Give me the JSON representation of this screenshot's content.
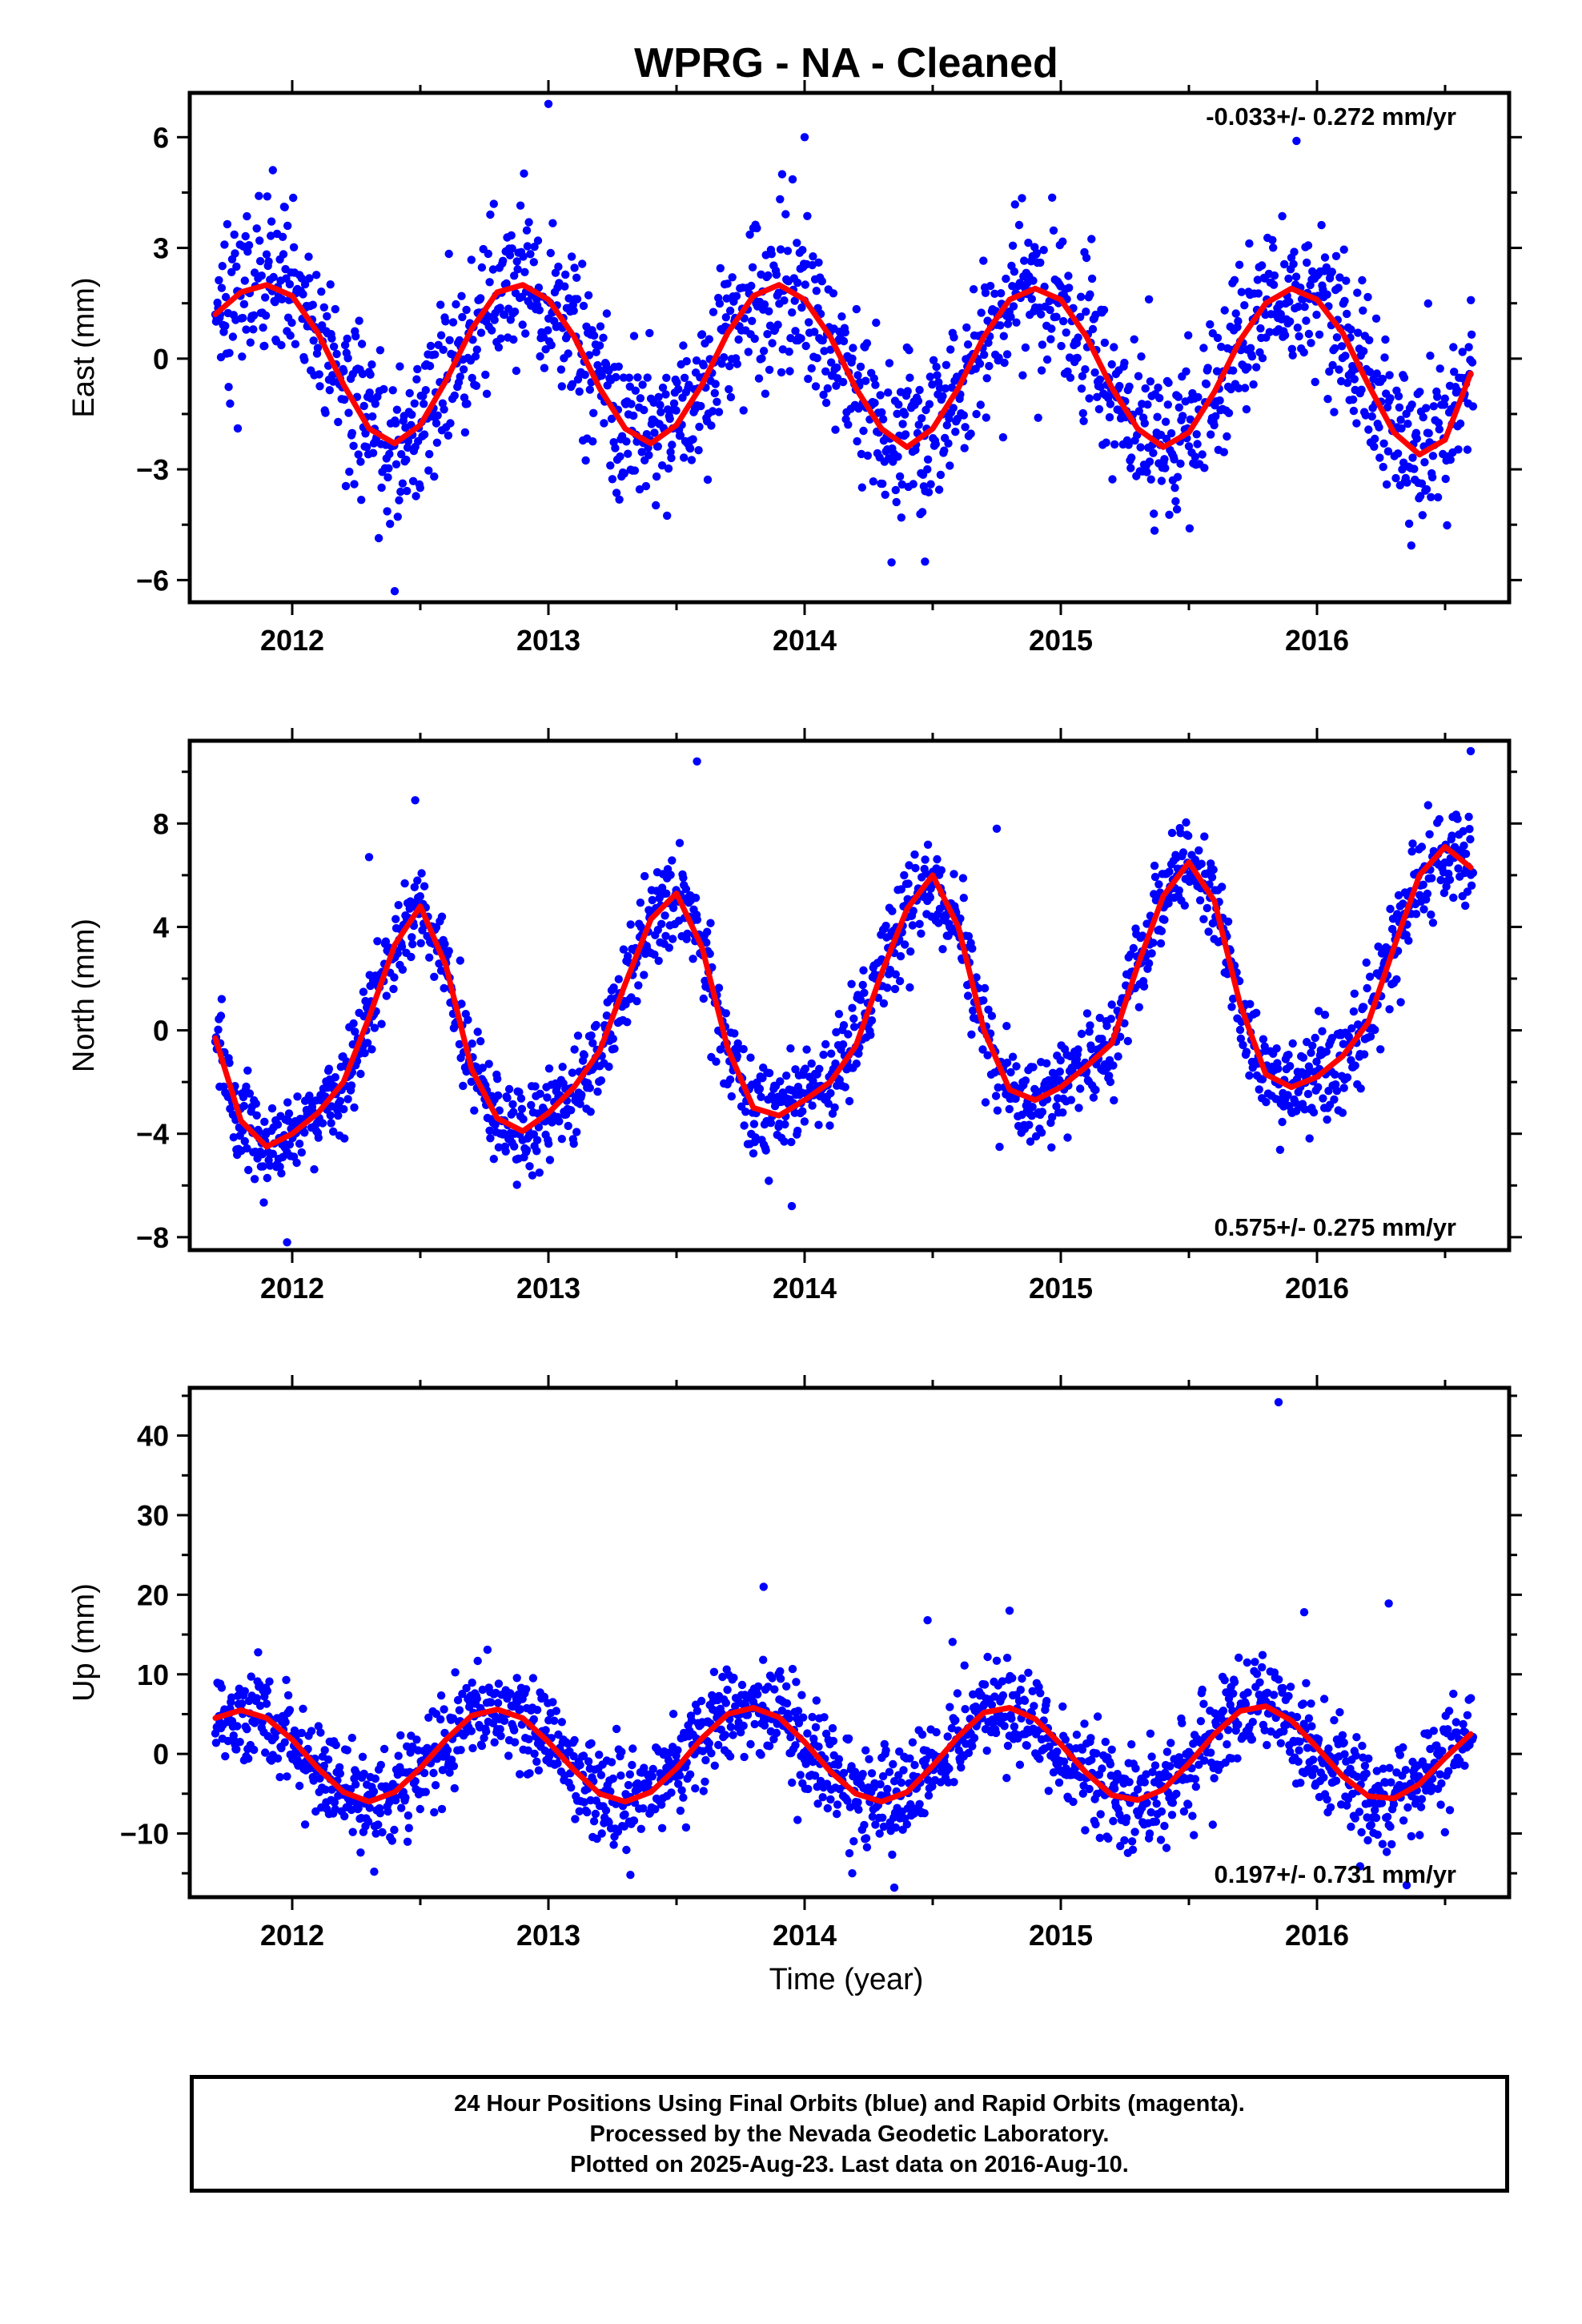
{
  "title": "WPRG  - NA - Cleaned",
  "xlabel": "Time (year)",
  "colors": {
    "points": "#0000ff",
    "fit": "#ff0000",
    "axes": "#000000"
  },
  "footer": {
    "line1": "24 Hour Positions Using Final Orbits (blue) and Rapid Orbits (magenta).",
    "line2": "Processed by the Nevada Geodetic Laboratory.",
    "line3": "Plotted on 2025-Aug-23. Last data on 2016-Aug-10."
  },
  "chart_data": [
    {
      "type": "scatter",
      "ylabel": "East (mm)",
      "xlim": [
        2011.6,
        2016.75
      ],
      "ylim": [
        -6.6,
        7.2
      ],
      "xticks": [
        2012,
        2013,
        2014,
        2015,
        2016
      ],
      "yticks": [
        -6,
        -3,
        0,
        3,
        6
      ],
      "ytick_labels": [
        "−6",
        "−3",
        "0",
        "3",
        "6"
      ],
      "rate": "-0.033+/- 0.272 mm/yr",
      "rate_position": "top-right",
      "fit": {
        "x": [
          2011.7,
          2011.8,
          2011.9,
          2012.0,
          2012.1,
          2012.2,
          2012.3,
          2012.4,
          2012.5,
          2012.6,
          2012.7,
          2012.8,
          2012.9,
          2013.0,
          2013.1,
          2013.2,
          2013.3,
          2013.4,
          2013.5,
          2013.6,
          2013.7,
          2013.8,
          2013.9,
          2014.0,
          2014.1,
          2014.2,
          2014.3,
          2014.4,
          2014.5,
          2014.6,
          2014.7,
          2014.8,
          2014.9,
          2015.0,
          2015.1,
          2015.2,
          2015.3,
          2015.4,
          2015.5,
          2015.6,
          2015.7,
          2015.8,
          2015.9,
          2016.0,
          2016.1,
          2016.2,
          2016.3,
          2016.4,
          2016.5,
          2016.6
        ],
        "y": [
          1.2,
          1.8,
          2.0,
          1.7,
          0.7,
          -0.7,
          -1.9,
          -2.3,
          -1.8,
          -0.6,
          0.8,
          1.8,
          2.0,
          1.6,
          0.6,
          -0.8,
          -1.9,
          -2.3,
          -1.8,
          -0.7,
          0.7,
          1.7,
          2.0,
          1.6,
          0.6,
          -0.8,
          -1.9,
          -2.4,
          -1.9,
          -0.8,
          0.6,
          1.6,
          1.9,
          1.6,
          0.6,
          -0.8,
          -1.9,
          -2.4,
          -2.0,
          -0.9,
          0.5,
          1.5,
          1.9,
          1.6,
          0.7,
          -0.7,
          -2.0,
          -2.6,
          -2.2,
          -0.4
        ]
      },
      "scatter": {
        "amplitude": 2.2,
        "period": 1.0,
        "phase_year": 2011.9,
        "sigma": 1.1,
        "outliers": [
          [
            2013.0,
            6.9
          ],
          [
            2015.92,
            5.9
          ],
          [
            2014.0,
            6.0
          ],
          [
            2012.4,
            -6.3
          ],
          [
            2014.47,
            -5.5
          ]
        ]
      }
    },
    {
      "type": "scatter",
      "ylabel": "North (mm)",
      "xlim": [
        2011.6,
        2016.75
      ],
      "ylim": [
        -8.5,
        11.2
      ],
      "xticks": [
        2012,
        2013,
        2014,
        2015,
        2016
      ],
      "yticks": [
        -8,
        -4,
        0,
        4,
        8
      ],
      "ytick_labels": [
        "−8",
        "−4",
        "0",
        "4",
        "8"
      ],
      "rate": "0.575+/- 0.275 mm/yr",
      "rate_position": "bottom-right",
      "fit": {
        "x": [
          2011.7,
          2011.8,
          2011.9,
          2012.0,
          2012.1,
          2012.2,
          2012.3,
          2012.4,
          2012.5,
          2012.6,
          2012.7,
          2012.8,
          2012.9,
          2013.0,
          2013.1,
          2013.2,
          2013.3,
          2013.4,
          2013.5,
          2013.6,
          2013.7,
          2013.8,
          2013.9,
          2014.0,
          2014.1,
          2014.2,
          2014.3,
          2014.4,
          2014.5,
          2014.6,
          2014.7,
          2014.8,
          2014.9,
          2015.0,
          2015.1,
          2015.2,
          2015.3,
          2015.4,
          2015.5,
          2015.6,
          2015.7,
          2015.8,
          2015.9,
          2016.0,
          2016.1,
          2016.2,
          2016.3,
          2016.4,
          2016.5,
          2016.6
        ],
        "y": [
          -0.3,
          -3.5,
          -4.5,
          -4.0,
          -3.2,
          -2.0,
          0.5,
          3.3,
          4.8,
          2.5,
          -1.5,
          -3.4,
          -3.9,
          -3.2,
          -2.2,
          -0.8,
          1.8,
          4.3,
          5.3,
          3.2,
          -0.7,
          -3.0,
          -3.3,
          -2.7,
          -2.0,
          -0.6,
          2.2,
          4.7,
          6.0,
          4.0,
          0.0,
          -2.3,
          -2.7,
          -2.2,
          -1.4,
          -0.5,
          2.5,
          5.2,
          6.5,
          5.0,
          1.0,
          -1.7,
          -2.2,
          -1.8,
          -1.0,
          0.3,
          3.2,
          6.0,
          7.1,
          6.3
        ]
      },
      "scatter": {
        "sigma": 0.9,
        "outliers": [
          [
            2013.58,
            10.4
          ],
          [
            2016.6,
            10.8
          ],
          [
            2012.48,
            8.9
          ],
          [
            2011.98,
            -8.2
          ],
          [
            2013.95,
            -6.8
          ],
          [
            2012.3,
            6.7
          ],
          [
            2014.75,
            7.8
          ]
        ]
      }
    },
    {
      "type": "scatter",
      "ylabel": "Up (mm)",
      "xlim": [
        2011.6,
        2016.75
      ],
      "ylim": [
        -18,
        46
      ],
      "xticks": [
        2012,
        2013,
        2014,
        2015,
        2016
      ],
      "yticks": [
        -10,
        0,
        10,
        20,
        30,
        40
      ],
      "ytick_labels": [
        "−10",
        "0",
        "10",
        "20",
        "30",
        "40"
      ],
      "rate": "0.197+/- 0.731 mm/yr",
      "rate_position": "bottom-right",
      "fit": {
        "x": [
          2011.7,
          2011.8,
          2011.9,
          2012.0,
          2012.1,
          2012.2,
          2012.3,
          2012.4,
          2012.5,
          2012.6,
          2012.7,
          2012.8,
          2012.9,
          2013.0,
          2013.1,
          2013.2,
          2013.3,
          2013.4,
          2013.5,
          2013.6,
          2013.7,
          2013.8,
          2013.9,
          2014.0,
          2014.1,
          2014.2,
          2014.3,
          2014.4,
          2014.5,
          2014.6,
          2014.7,
          2014.8,
          2014.9,
          2015.0,
          2015.1,
          2015.2,
          2015.3,
          2015.4,
          2015.5,
          2015.6,
          2015.7,
          2015.8,
          2015.9,
          2016.0,
          2016.1,
          2016.2,
          2016.3,
          2016.4,
          2016.5,
          2016.6
        ],
        "y": [
          4.5,
          5.5,
          4.5,
          1.8,
          -1.8,
          -4.8,
          -6.0,
          -4.8,
          -1.8,
          1.8,
          4.8,
          5.6,
          4.5,
          1.5,
          -2.0,
          -5.0,
          -6.0,
          -4.8,
          -1.8,
          2.0,
          5.0,
          5.8,
          4.6,
          1.5,
          -2.2,
          -5.0,
          -6.0,
          -4.8,
          -1.5,
          2.2,
          5.2,
          5.8,
          4.4,
          1.2,
          -2.4,
          -5.2,
          -5.8,
          -4.5,
          -1.2,
          2.5,
          5.4,
          6.0,
          4.2,
          0.8,
          -2.8,
          -5.3,
          -5.6,
          -3.8,
          -0.5,
          2.5
        ]
      },
      "scatter": {
        "sigma": 3.1,
        "outliers": [
          [
            2015.85,
            44.2
          ],
          [
            2013.84,
            21.0
          ],
          [
            2016.28,
            18.9
          ],
          [
            2015.95,
            17.8
          ],
          [
            2014.48,
            16.8
          ],
          [
            2014.8,
            18.0
          ],
          [
            2014.35,
            -16.8
          ],
          [
            2016.35,
            -16.5
          ],
          [
            2013.32,
            -15.2
          ],
          [
            2012.32,
            -14.8
          ]
        ]
      }
    }
  ]
}
